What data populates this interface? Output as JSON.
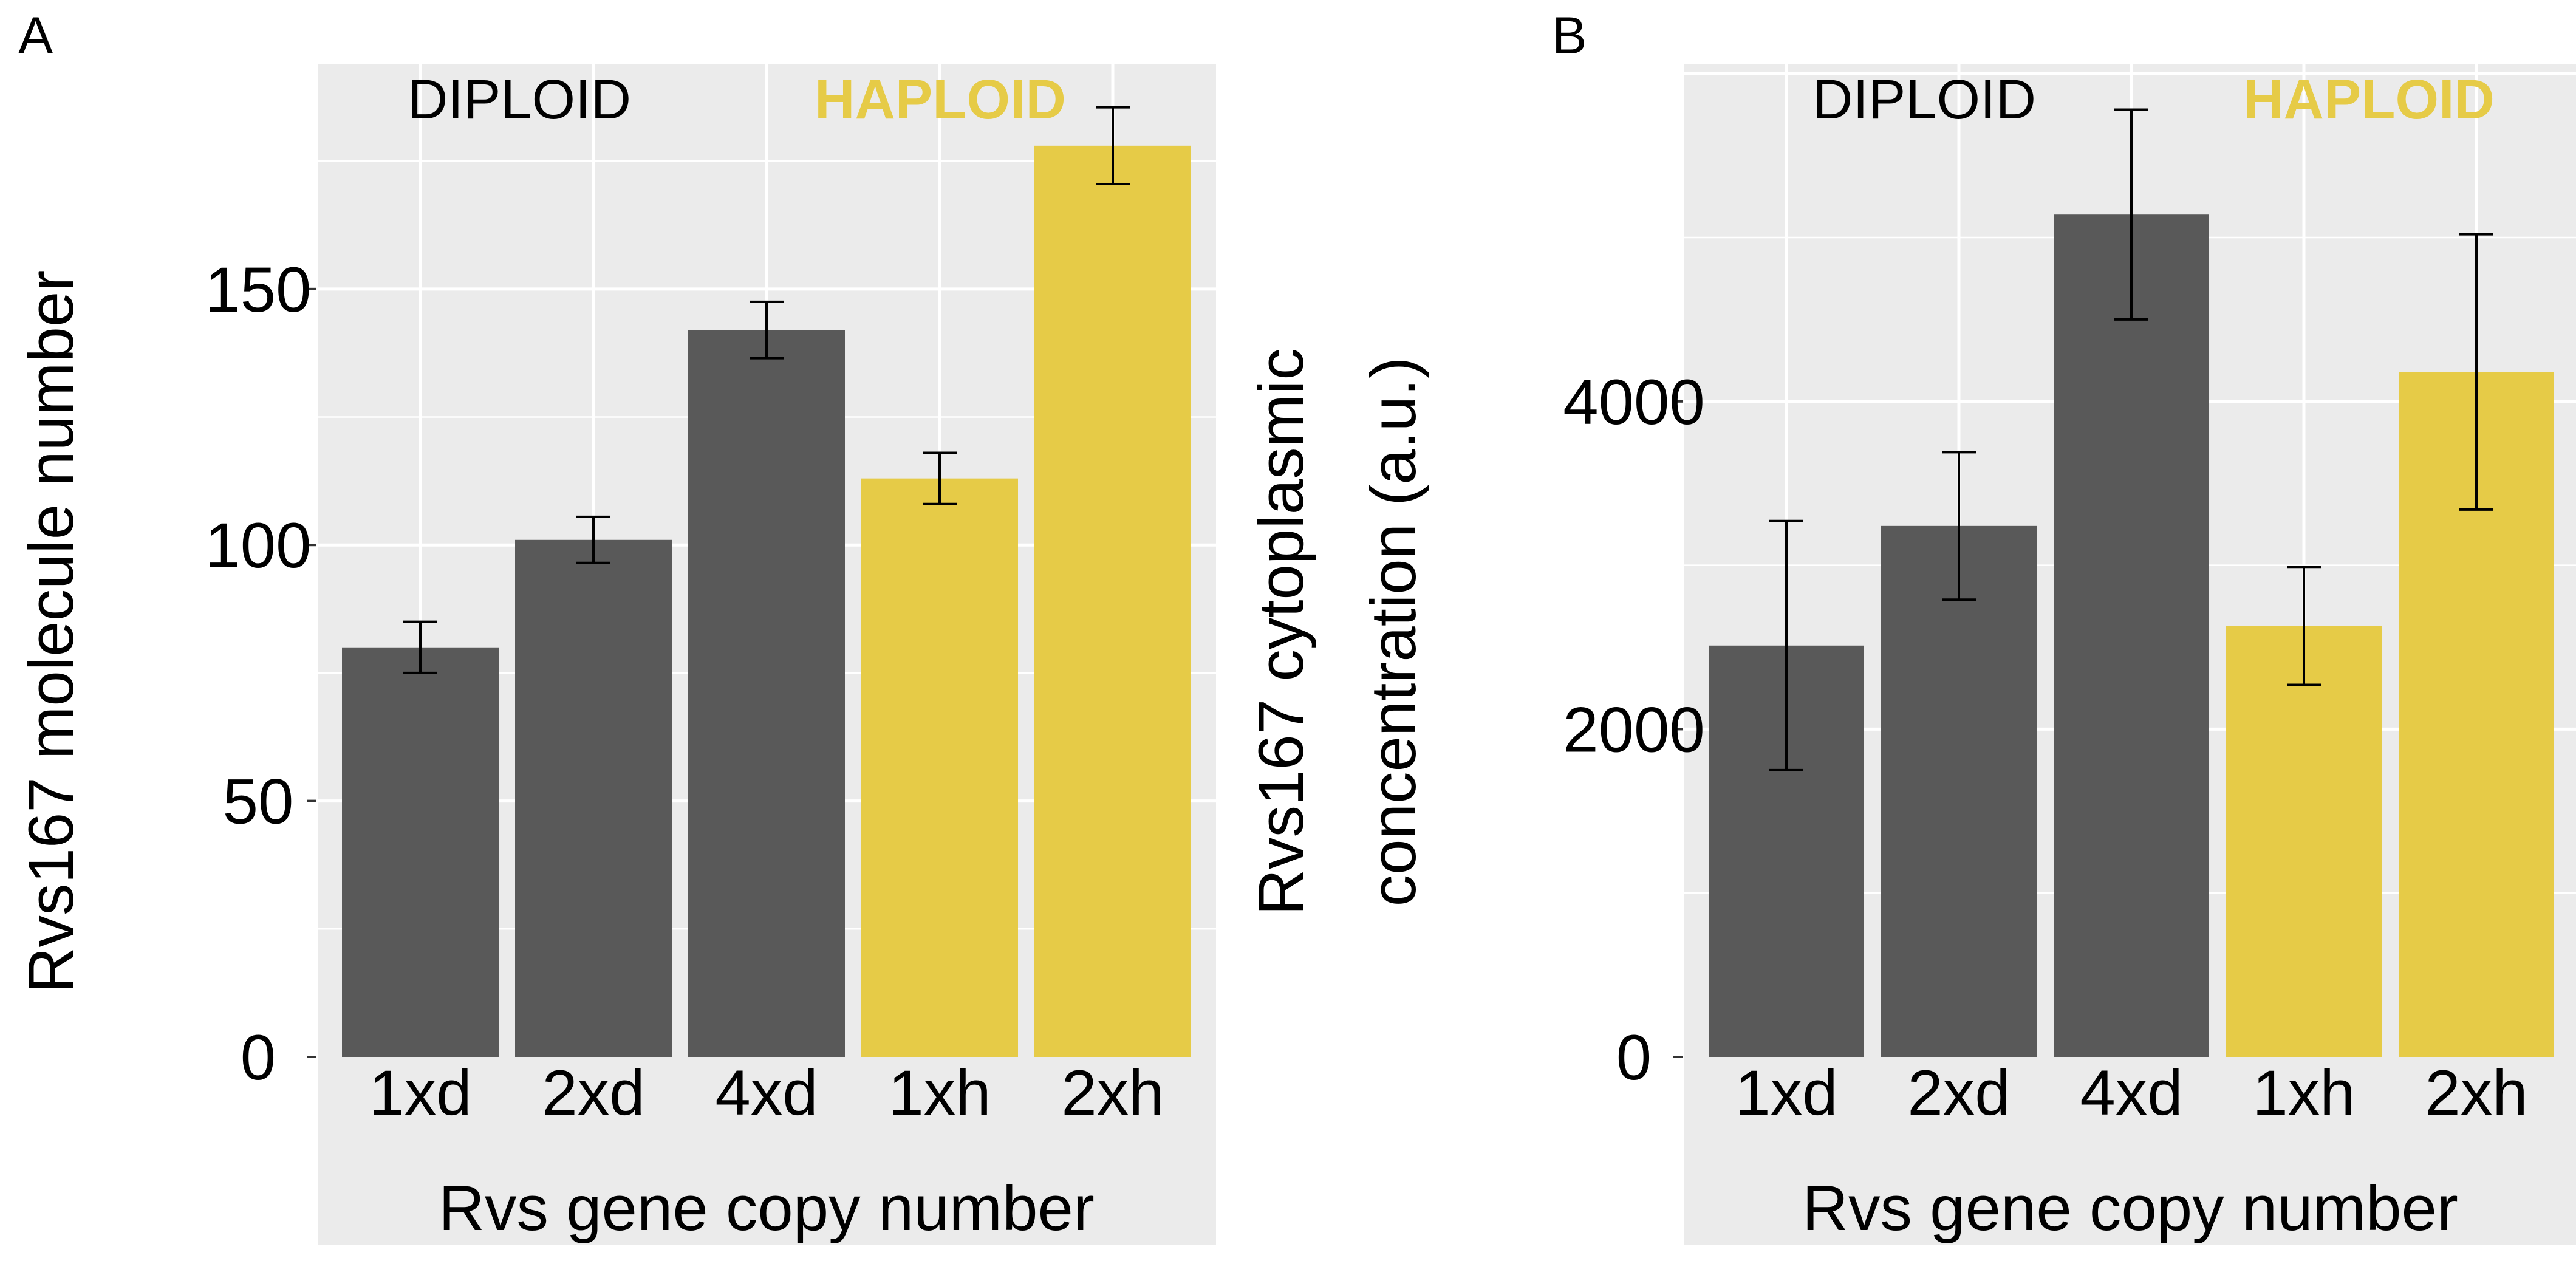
{
  "colors": {
    "diploid": "#595959",
    "haploid": "#E6CB47",
    "panel_bg": "#EBEBEB",
    "grid": "#FFFFFF",
    "error_bar": "#000000",
    "diploid_label": "#000000",
    "haploid_label": "#E6CB47"
  },
  "chart_data": [
    {
      "type": "bar",
      "panel_label": "A",
      "categories": [
        "1xd",
        "2xd",
        "4xd",
        "1xh",
        "2xh"
      ],
      "groups": [
        "diploid",
        "diploid",
        "diploid",
        "haploid",
        "haploid"
      ],
      "values": [
        80,
        101,
        142,
        113,
        178
      ],
      "errors": [
        5,
        4.5,
        5.5,
        5,
        7.5
      ],
      "group_labels": {
        "diploid": "DIPLOID",
        "haploid": "HAPLOID"
      },
      "xlabel": "Rvs gene copy number",
      "ylabel": "Rvs167 molecule number",
      "ylim": [
        0,
        194
      ],
      "yticks": [
        0,
        50,
        100,
        150
      ],
      "ytick_labels": [
        "0",
        "50",
        "100",
        "150"
      ],
      "grid": true
    },
    {
      "type": "bar",
      "panel_label": "B",
      "categories": [
        "1xd",
        "2xd",
        "4xd",
        "1xh",
        "2xh"
      ],
      "groups": [
        "diploid",
        "diploid",
        "diploid",
        "haploid",
        "haploid"
      ],
      "values": [
        2510,
        3240,
        5140,
        2630,
        4180
      ],
      "errors": [
        760,
        450,
        640,
        360,
        840
      ],
      "group_labels": {
        "diploid": "DIPLOID",
        "haploid": "HAPLOID"
      },
      "xlabel": "Rvs gene copy number",
      "ylabel_lines": [
        "Rvs167 cytoplasmic",
        "concentration (a.u.)"
      ],
      "ylim": [
        0,
        6060
      ],
      "yticks": [
        0,
        2000,
        4000
      ],
      "ytick_labels": [
        "0",
        "2000",
        "4000"
      ],
      "grid": true
    }
  ]
}
